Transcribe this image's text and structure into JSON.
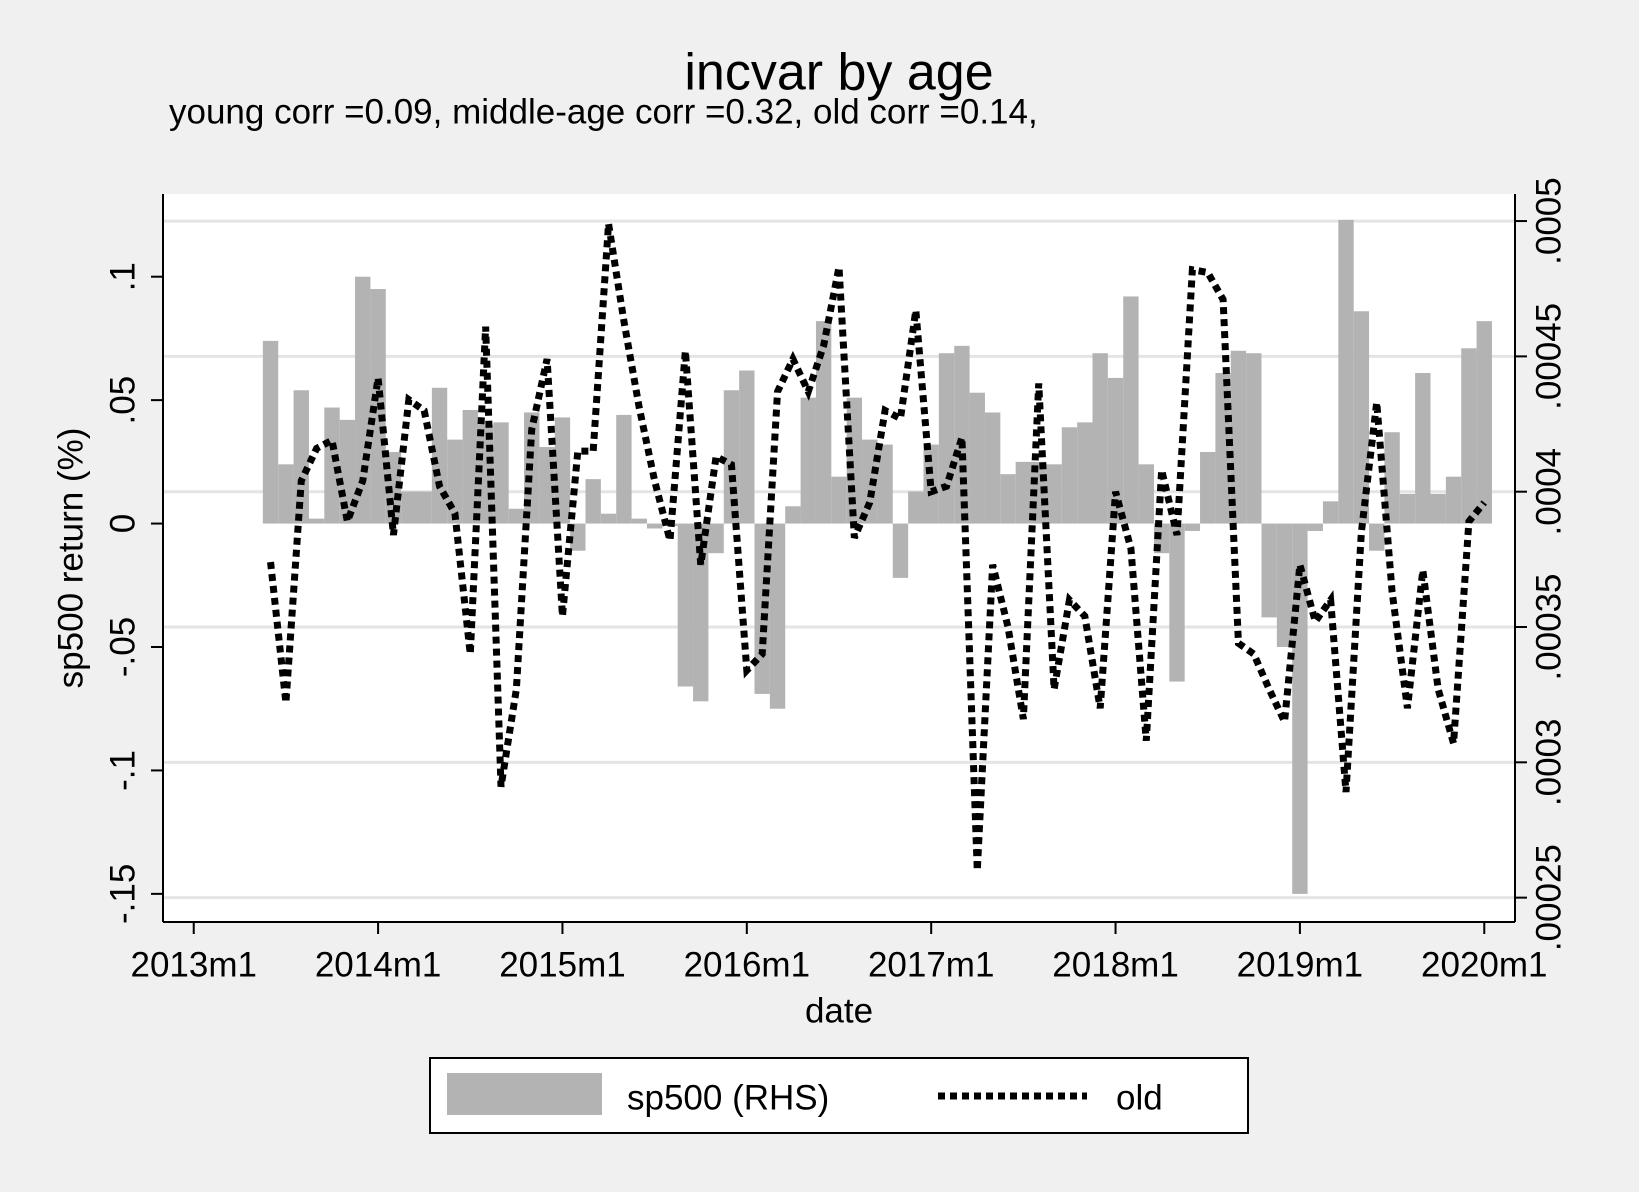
{
  "chart_data": {
    "type": "bar",
    "title": "incvar by age",
    "subtitle": "young corr =0.09, middle-age corr =0.32, old corr =0.14,",
    "x_label": "date",
    "y_label": "sp500 return (%)",
    "x": [
      "2013m6",
      "2013m7",
      "2013m8",
      "2013m9",
      "2013m10",
      "2013m11",
      "2013m12",
      "2014m1",
      "2014m2",
      "2014m3",
      "2014m4",
      "2014m5",
      "2014m6",
      "2014m7",
      "2014m8",
      "2014m9",
      "2014m10",
      "2014m11",
      "2014m12",
      "2015m1",
      "2015m2",
      "2015m3",
      "2015m4",
      "2015m5",
      "2015m6",
      "2015m7",
      "2015m8",
      "2015m9",
      "2015m10",
      "2015m11",
      "2015m12",
      "2016m1",
      "2016m2",
      "2016m3",
      "2016m4",
      "2016m5",
      "2016m6",
      "2016m7",
      "2016m8",
      "2016m9",
      "2016m10",
      "2016m11",
      "2016m12",
      "2017m1",
      "2017m2",
      "2017m3",
      "2017m4",
      "2017m5",
      "2017m6",
      "2017m7",
      "2017m8",
      "2017m9",
      "2017m10",
      "2017m11",
      "2017m12",
      "2018m1",
      "2018m2",
      "2018m3",
      "2018m4",
      "2018m5",
      "2018m6",
      "2018m7",
      "2018m8",
      "2018m9",
      "2018m10",
      "2018m11",
      "2018m12",
      "2019m1",
      "2019m2",
      "2019m3",
      "2019m4",
      "2019m5",
      "2019m6",
      "2019m7",
      "2019m8",
      "2019m9",
      "2019m10",
      "2019m11",
      "2019m12",
      "2020m1"
    ],
    "series": [
      {
        "name": "sp500 (RHS)",
        "type": "bar",
        "color": "#b3b3b3",
        "values": [
          0.074,
          0.024,
          0.054,
          0.002,
          0.047,
          0.042,
          0.1,
          0.095,
          0.029,
          0.013,
          0.013,
          0.055,
          0.034,
          0.046,
          0.04,
          0.041,
          0.006,
          0.045,
          0.031,
          0.043,
          -0.011,
          0.018,
          0.004,
          0.044,
          0.002,
          -0.002,
          -0.001,
          -0.066,
          -0.072,
          -0.012,
          0.054,
          0.062,
          -0.069,
          -0.075,
          0.007,
          0.051,
          0.082,
          0.019,
          0.051,
          0.034,
          0.032,
          -0.022,
          0.013,
          0.032,
          0.069,
          0.072,
          0.053,
          0.045,
          0.02,
          0.025,
          0.025,
          0.024,
          0.039,
          0.041,
          0.069,
          0.059,
          0.092,
          0.024,
          -0.012,
          -0.064,
          -0.003,
          0.029,
          0.061,
          0.07,
          0.069,
          -0.038,
          -0.05,
          -0.15,
          -0.003,
          0.009,
          0.123,
          0.086,
          -0.011,
          0.037,
          0.012,
          0.061,
          0.012,
          0.019,
          0.071,
          0.082
        ]
      },
      {
        "name": "old",
        "type": "line",
        "axis": "y2",
        "color": "#000000",
        "values": [
          0.000374,
          0.000322,
          0.000404,
          0.000416,
          0.000419,
          0.000389,
          0.000404,
          0.000442,
          0.000384,
          0.000434,
          0.00043,
          0.000402,
          0.000392,
          0.00034,
          0.000461,
          0.000291,
          0.000327,
          0.000423,
          0.000449,
          0.000354,
          0.000415,
          0.000415,
          0.000499,
          0.000463,
          0.000431,
          0.000404,
          0.000382,
          0.000452,
          0.000373,
          0.000413,
          0.00041,
          0.000334,
          0.00034,
          0.000437,
          0.000449,
          0.000437,
          0.000454,
          0.000483,
          0.000383,
          0.000396,
          0.00043,
          0.000427,
          0.000467,
          0.0004,
          0.000402,
          0.00042,
          0.00026,
          0.000373,
          0.00035,
          0.000316,
          0.00044,
          0.000327,
          0.00036,
          0.000354,
          0.00032,
          0.0004,
          0.000379,
          0.000308,
          0.000408,
          0.000384,
          0.000482,
          0.000481,
          0.000471,
          0.000344,
          0.00034,
          0.000327,
          0.000315,
          0.000373,
          0.000352,
          0.00036,
          0.000289,
          0.000385,
          0.000433,
          0.000363,
          0.00032,
          0.000371,
          0.000327,
          0.000307,
          0.000389,
          0.000396
        ]
      }
    ],
    "xlim": [
      "2012m11",
      "2020m3"
    ],
    "xticks": [
      "2013m1",
      "2014m1",
      "2015m1",
      "2016m1",
      "2017m1",
      "2018m1",
      "2019m1",
      "2020m1"
    ],
    "ylim": [
      -0.1614,
      0.1335
    ],
    "yticks": [
      {
        "value": -0.15,
        "label": "-.15"
      },
      {
        "value": -0.1,
        "label": "-.1"
      },
      {
        "value": -0.05,
        "label": "-.05"
      },
      0,
      {
        "value": 0.05,
        "label": ".05"
      },
      {
        "value": 0.1,
        "label": ".1"
      }
    ],
    "y2lim": [
      0.000241,
      0.00051
    ],
    "y2ticks": [
      {
        "value": 0.00025,
        "label": ".00025"
      },
      {
        "value": 0.0003,
        "label": ".0003"
      },
      {
        "value": 0.00035,
        "label": ".00035"
      },
      {
        "value": 0.0004,
        "label": ".0004"
      },
      {
        "value": 0.00045,
        "label": ".00045"
      },
      {
        "value": 0.0005,
        "label": ".0005"
      }
    ],
    "grid": "y2",
    "legend": "bottom"
  }
}
